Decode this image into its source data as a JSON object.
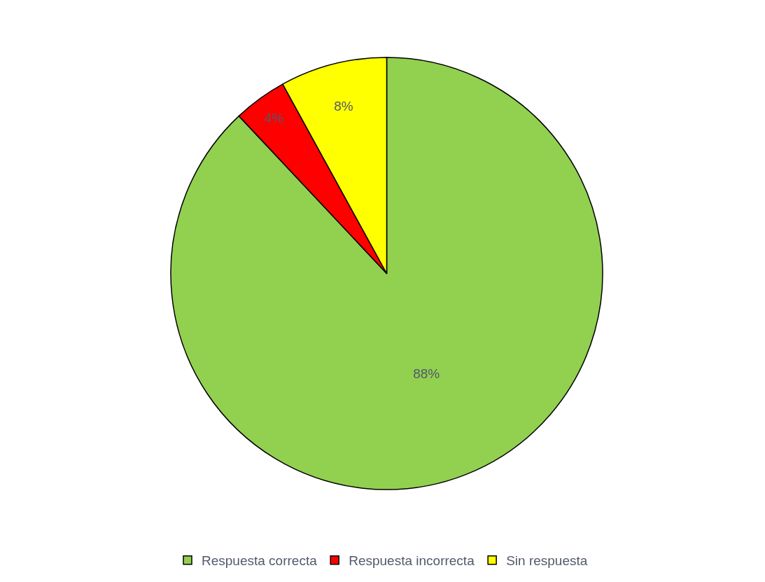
{
  "chart_data": {
    "type": "pie",
    "categories": [
      "Respuesta correcta",
      "Respuesta incorrecta",
      "Sin respuesta"
    ],
    "values": [
      88,
      4,
      8
    ],
    "colors": [
      "#92d050",
      "#ff0000",
      "#ffff00"
    ],
    "value_labels": [
      "88%",
      "4%",
      "8%"
    ],
    "legend": "bottom"
  }
}
